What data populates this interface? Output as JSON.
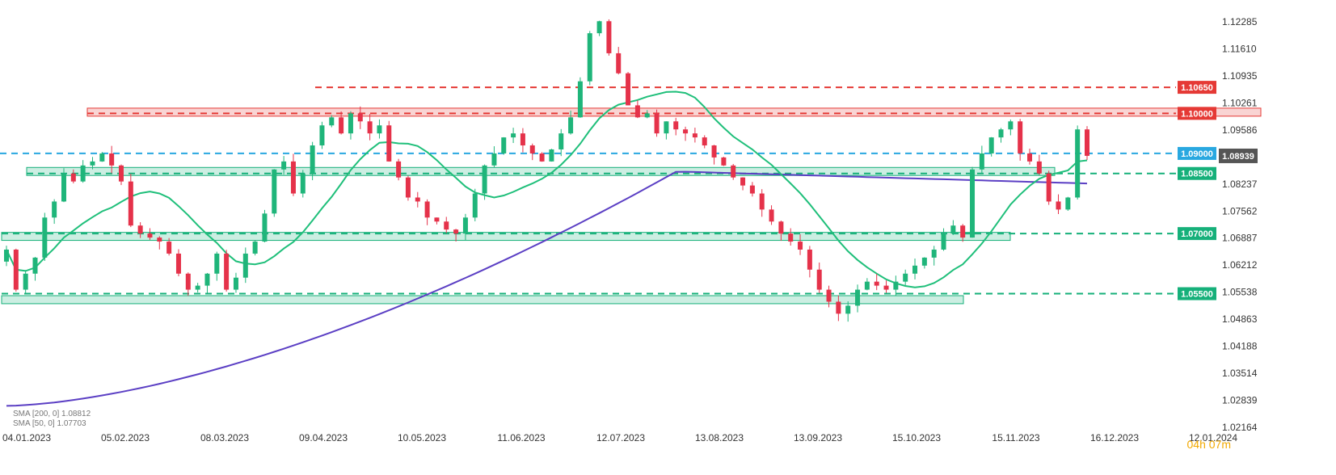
{
  "chart_data": {
    "type": "candlestick",
    "instrument_scale": "price",
    "ylim": [
      1.02164,
      1.12785
    ],
    "y_ticks": [
      "1.12285",
      "1.11610",
      "1.10935",
      "1.10261",
      "1.09586",
      "1.08237",
      "1.07562",
      "1.06887",
      "1.06212",
      "1.05538",
      "1.04863",
      "1.04188",
      "1.03514",
      "1.02839",
      "1.02164"
    ],
    "x_ticks": [
      "04.01.2023",
      "05.02.2023",
      "08.03.2023",
      "09.04.2023",
      "10.05.2023",
      "11.06.2023",
      "12.07.2023",
      "13.08.2023",
      "13.09.2023",
      "15.10.2023",
      "15.11.2023",
      "16.12.2023",
      "12.01.2024"
    ],
    "current_price": "1.08939",
    "horizontal_levels": [
      {
        "value": 1.1065,
        "label": "1.10650",
        "color": "#e53935",
        "style": "dashed"
      },
      {
        "value": 1.1,
        "label": "1.10000",
        "color": "#e53935",
        "style": "dashed"
      },
      {
        "value": 1.09,
        "label": "1.09000",
        "color": "#29a8e0",
        "style": "dashed"
      },
      {
        "value": 1.085,
        "label": "1.08500",
        "color": "#16b07a",
        "style": "dashed"
      },
      {
        "value": 1.07,
        "label": "1.07000",
        "color": "#16b07a",
        "style": "dashed"
      },
      {
        "value": 1.055,
        "label": "1.05500",
        "color": "#16b07a",
        "style": "dashed"
      }
    ],
    "zones": [
      {
        "from": 1.0993,
        "to": 1.1013,
        "color": "#e53935"
      },
      {
        "from": 1.0845,
        "to": 1.0865,
        "color": "#16b07a"
      },
      {
        "from": 1.0683,
        "to": 1.0703,
        "color": "#16b07a"
      },
      {
        "from": 1.0525,
        "to": 1.0545,
        "color": "#16b07a"
      }
    ],
    "sma_lines": [
      {
        "name": "SMA [200, 0]",
        "value": "1.08812",
        "color": "#5b3fc4"
      },
      {
        "name": "SMA [50, 0]",
        "value": "1.07703",
        "color": "#1fbf7a"
      }
    ],
    "ohlc_close_path": [
      1.066,
      1.056,
      1.06,
      1.064,
      1.074,
      1.078,
      1.085,
      1.083,
      1.087,
      1.088,
      1.09,
      1.087,
      1.083,
      1.072,
      1.07,
      1.069,
      1.068,
      1.065,
      1.06,
      1.056,
      1.057,
      1.06,
      1.065,
      1.056,
      1.059,
      1.065,
      1.068,
      1.075,
      1.086,
      1.088,
      1.08,
      1.085,
      1.092,
      1.097,
      1.099,
      1.095,
      1.1,
      1.098,
      1.095,
      1.097,
      1.088,
      1.084,
      1.079,
      1.078,
      1.074,
      1.073,
      1.071,
      1.07,
      1.074,
      1.08,
      1.087,
      1.09,
      1.094,
      1.095,
      1.092,
      1.09,
      1.088,
      1.091,
      1.095,
      1.099,
      1.108,
      1.12,
      1.123,
      1.115,
      1.11,
      1.102,
      1.099,
      1.1,
      1.095,
      1.098,
      1.096,
      1.095,
      1.094,
      1.092,
      1.089,
      1.087,
      1.084,
      1.082,
      1.08,
      1.076,
      1.073,
      1.07,
      1.068,
      1.066,
      1.061,
      1.056,
      1.053,
      1.05,
      1.052,
      1.056,
      1.058,
      1.057,
      1.056,
      1.058,
      1.06,
      1.062,
      1.064,
      1.066,
      1.07,
      1.072,
      1.069,
      1.086,
      1.09,
      1.094,
      1.096,
      1.098,
      1.09,
      1.088,
      1.085,
      1.078,
      1.076,
      1.079,
      1.096,
      1.0894
    ]
  },
  "timer": {
    "hours": "04",
    "h_unit": "h",
    "minutes": "07",
    "m_unit": "m"
  }
}
